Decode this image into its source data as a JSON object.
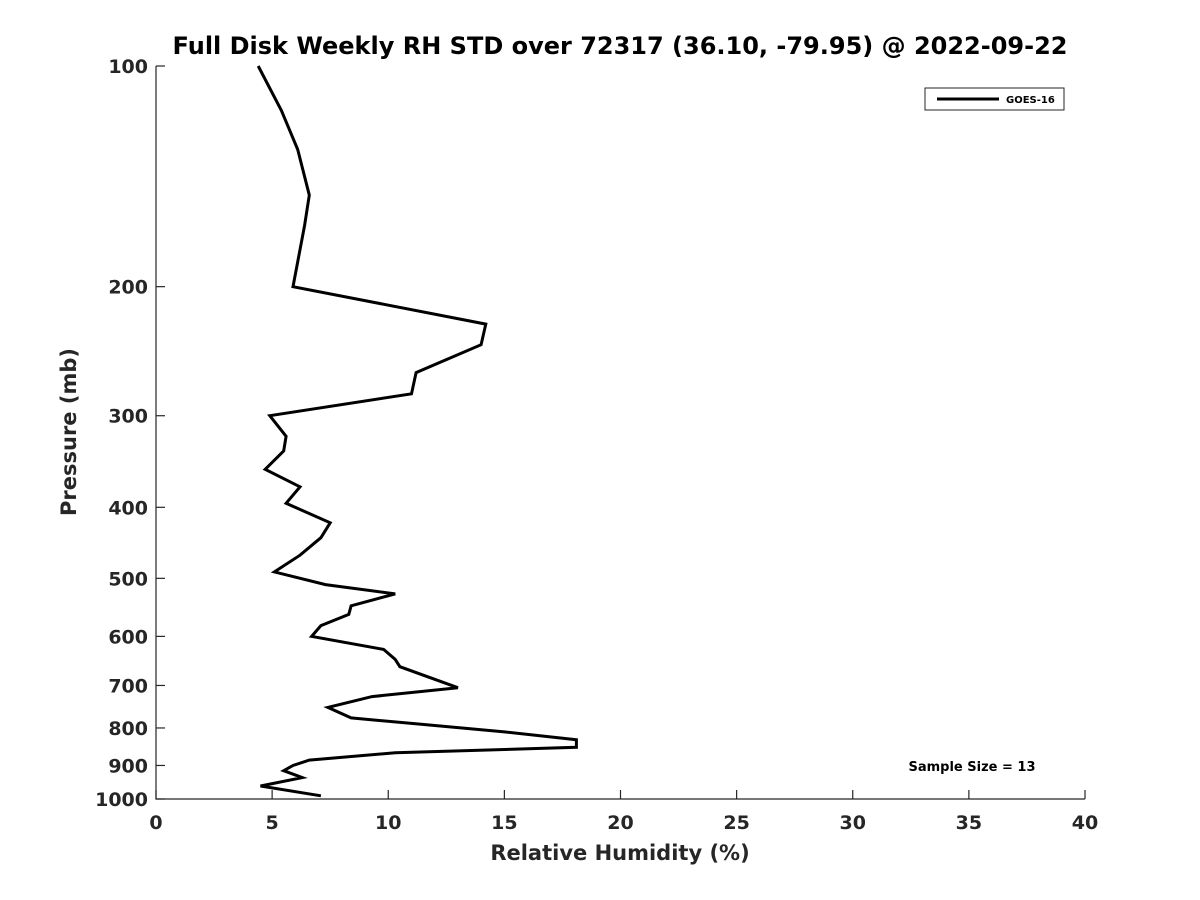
{
  "chart_data": {
    "type": "line",
    "title": "Full Disk Weekly RH STD over 72317 (36.10, -79.95) @ 2022-09-22",
    "xlabel": "Relative Humidity (%)",
    "ylabel": "Pressure (mb)",
    "xlim": [
      0,
      40
    ],
    "ylim": [
      100,
      1000
    ],
    "y_scale": "log",
    "y_reversed": true,
    "grid": false,
    "legend_position": "top-right",
    "x_ticks": [
      "0",
      "5",
      "10",
      "15",
      "20",
      "25",
      "30",
      "35",
      "40"
    ],
    "y_ticks": [
      "100",
      "200",
      "300",
      "400",
      "500",
      "600",
      "700",
      "800",
      "900",
      "1000"
    ],
    "annotation": "Sample Size = 13",
    "series": [
      {
        "name": "GOES-16",
        "color": "#000000",
        "x": [
          4.4,
          5.4,
          6.1,
          6.6,
          6.4,
          5.9,
          14.2,
          14.0,
          11.2,
          11.0,
          4.9,
          5.6,
          5.5,
          4.7,
          6.2,
          5.6,
          7.5,
          7.1,
          6.2,
          5.1,
          7.3,
          10.3,
          8.4,
          8.3,
          7.1,
          6.7,
          9.8,
          10.3,
          10.5,
          13.0,
          9.3,
          7.4,
          8.4,
          11.3,
          15.0,
          18.1,
          18.1,
          10.3,
          6.6,
          5.9,
          5.5,
          6.3,
          4.5,
          7.1
        ],
        "y": [
          100,
          115,
          130,
          150,
          165,
          200,
          225,
          240,
          262,
          280,
          300,
          320,
          335,
          355,
          375,
          395,
          420,
          440,
          465,
          490,
          510,
          525,
          545,
          560,
          580,
          600,
          625,
          645,
          660,
          705,
          725,
          750,
          775,
          790,
          810,
          830,
          850,
          865,
          885,
          900,
          915,
          935,
          960,
          990
        ]
      }
    ]
  }
}
